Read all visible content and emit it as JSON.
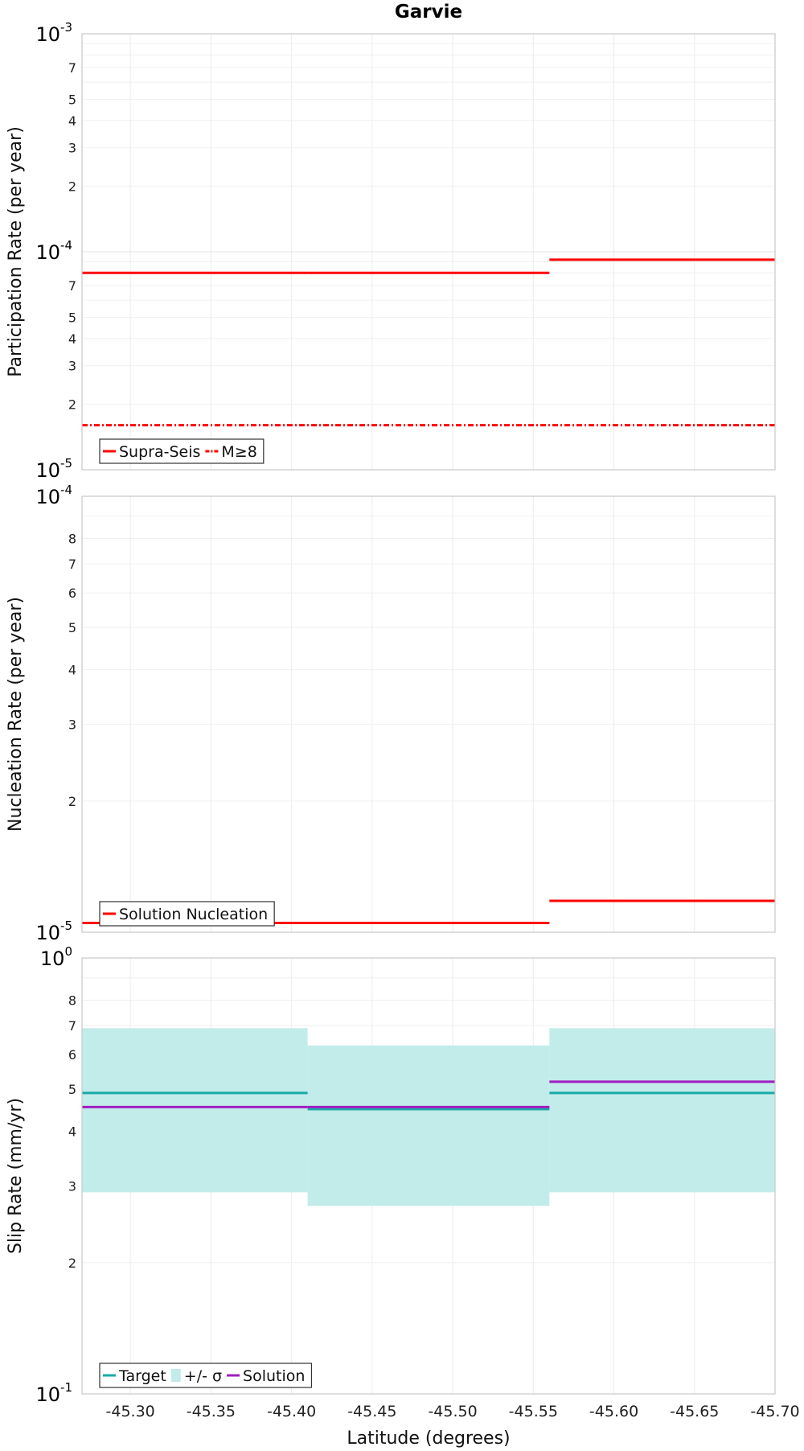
{
  "chart_data": [
    {
      "type": "line",
      "title": "Garvie",
      "ylabel": "Participation Rate (per year)",
      "xlabel": "",
      "y_scale": "log",
      "ylim": [
        1e-05,
        0.001
      ],
      "xlim": [
        -45.27,
        -45.7
      ],
      "x_ticks": [
        -45.3,
        -45.35,
        -45.4,
        -45.45,
        -45.5,
        -45.55,
        -45.6,
        -45.65,
        -45.7
      ],
      "x_tick_labels_shown": false,
      "y_tick_labels": [
        {
          "value": 0.001,
          "base": "10",
          "exp": "-3"
        },
        {
          "value": 0.0007,
          "label": "7"
        },
        {
          "value": 0.0005,
          "label": "5"
        },
        {
          "value": 0.0004,
          "label": "4"
        },
        {
          "value": 0.0003,
          "label": "3"
        },
        {
          "value": 0.0002,
          "label": "2"
        },
        {
          "value": 0.0001,
          "base": "10",
          "exp": "-4"
        },
        {
          "value": 7e-05,
          "label": "7"
        },
        {
          "value": 5e-05,
          "label": "5"
        },
        {
          "value": 4e-05,
          "label": "4"
        },
        {
          "value": 3e-05,
          "label": "3"
        },
        {
          "value": 2e-05,
          "label": "2"
        },
        {
          "value": 1e-05,
          "base": "10",
          "exp": "-5"
        }
      ],
      "series": [
        {
          "name": "Supra-Seis",
          "color": "#ff0000",
          "style": "solid",
          "segments": [
            {
              "x": [
                -45.27,
                -45.41
              ],
              "y": 8e-05
            },
            {
              "x": [
                -45.41,
                -45.56
              ],
              "y": 8e-05
            },
            {
              "x": [
                -45.56,
                -45.7
              ],
              "y": 9.2e-05
            }
          ]
        },
        {
          "name": "M≥8",
          "color": "#ff0000",
          "style": "dashdot",
          "segments": [
            {
              "x": [
                -45.27,
                -45.7
              ],
              "y": 1.6e-05
            }
          ]
        }
      ],
      "legend": "bottom-left",
      "grid": true
    },
    {
      "type": "line",
      "title": "",
      "ylabel": "Nucleation Rate (per year)",
      "xlabel": "",
      "y_scale": "log",
      "ylim": [
        1e-05,
        0.0001
      ],
      "xlim": [
        -45.27,
        -45.7
      ],
      "x_ticks": [
        -45.3,
        -45.35,
        -45.4,
        -45.45,
        -45.5,
        -45.55,
        -45.6,
        -45.65,
        -45.7
      ],
      "x_tick_labels_shown": false,
      "y_tick_labels": [
        {
          "value": 0.0001,
          "base": "10",
          "exp": "-4"
        },
        {
          "value": 8e-05,
          "label": "8"
        },
        {
          "value": 7e-05,
          "label": "7"
        },
        {
          "value": 6e-05,
          "label": "6"
        },
        {
          "value": 5e-05,
          "label": "5"
        },
        {
          "value": 4e-05,
          "label": "4"
        },
        {
          "value": 3e-05,
          "label": "3"
        },
        {
          "value": 2e-05,
          "label": "2"
        },
        {
          "value": 1e-05,
          "base": "10",
          "exp": "-5"
        }
      ],
      "series": [
        {
          "name": "Solution Nucleation",
          "color": "#ff0000",
          "style": "solid",
          "segments": [
            {
              "x": [
                -45.27,
                -45.41
              ],
              "y": 1.05e-05
            },
            {
              "x": [
                -45.41,
                -45.56
              ],
              "y": 1.05e-05
            },
            {
              "x": [
                -45.56,
                -45.7
              ],
              "y": 1.18e-05
            }
          ]
        }
      ],
      "legend": "bottom-left",
      "grid": true
    },
    {
      "type": "area",
      "title": "",
      "ylabel": "Slip Rate (mm/yr)",
      "xlabel": "Latitude (degrees)",
      "y_scale": "log",
      "ylim": [
        0.1,
        1.0
      ],
      "xlim": [
        -45.27,
        -45.7
      ],
      "x_ticks": [
        -45.3,
        -45.35,
        -45.4,
        -45.45,
        -45.5,
        -45.55,
        -45.6,
        -45.65,
        -45.7
      ],
      "x_tick_labels": [
        "-45.30",
        "-45.35",
        "-45.40",
        "-45.45",
        "-45.50",
        "-45.55",
        "-45.60",
        "-45.65",
        "-45.70"
      ],
      "x_tick_labels_shown": true,
      "y_tick_labels": [
        {
          "value": 1.0,
          "base": "10",
          "exp": "0"
        },
        {
          "value": 0.8,
          "label": "8"
        },
        {
          "value": 0.7,
          "label": "7"
        },
        {
          "value": 0.6,
          "label": "6"
        },
        {
          "value": 0.5,
          "label": "5"
        },
        {
          "value": 0.4,
          "label": "4"
        },
        {
          "value": 0.3,
          "label": "3"
        },
        {
          "value": 0.2,
          "label": "2"
        },
        {
          "value": 0.1,
          "base": "10",
          "exp": "-1"
        }
      ],
      "bands": [
        {
          "name": "+/- σ",
          "color": "#c2ecea",
          "segments": [
            {
              "x": [
                -45.27,
                -45.41
              ],
              "low": 0.29,
              "high": 0.69
            },
            {
              "x": [
                -45.41,
                -45.56
              ],
              "low": 0.27,
              "high": 0.63
            },
            {
              "x": [
                -45.56,
                -45.7
              ],
              "low": 0.29,
              "high": 0.69
            }
          ]
        }
      ],
      "series": [
        {
          "name": "Target",
          "color": "#1aaaa8",
          "style": "solid",
          "segments": [
            {
              "x": [
                -45.27,
                -45.41
              ],
              "y": 0.49
            },
            {
              "x": [
                -45.41,
                -45.56
              ],
              "y": 0.45
            },
            {
              "x": [
                -45.56,
                -45.7
              ],
              "y": 0.49
            }
          ]
        },
        {
          "name": "Solution",
          "color": "#a01ec0",
          "style": "solid",
          "segments": [
            {
              "x": [
                -45.27,
                -45.41
              ],
              "y": 0.455
            },
            {
              "x": [
                -45.41,
                -45.56
              ],
              "y": 0.455
            },
            {
              "x": [
                -45.56,
                -45.7
              ],
              "y": 0.52
            }
          ]
        }
      ],
      "legend_order": [
        "Target",
        "+/- σ",
        "Solution"
      ],
      "legend": "bottom-left",
      "grid": true
    }
  ]
}
